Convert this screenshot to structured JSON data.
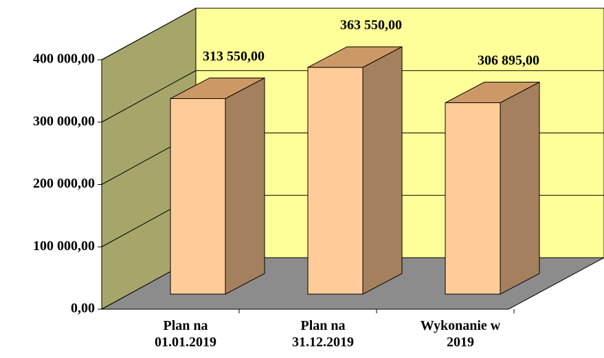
{
  "chart_data": {
    "type": "bar3d",
    "categories": [
      "Plan na 01.01.2019",
      "Plan na 31.12.2019",
      "Wykonanie w 2019"
    ],
    "values": [
      313550,
      363550,
      306895
    ],
    "value_labels": [
      "313 550,00",
      "363 550,00",
      "306 895,00"
    ],
    "color": "#ffcc99",
    "ylim": [
      0,
      400000
    ],
    "yticks": [
      {
        "value": 0,
        "label": "0,00"
      },
      {
        "value": 100000,
        "label": "100 000,00"
      },
      {
        "value": 200000,
        "label": "200 000,00"
      },
      {
        "value": 300000,
        "label": "300 000,00"
      },
      {
        "value": 400000,
        "label": "400 000,00"
      }
    ],
    "grid": true
  }
}
